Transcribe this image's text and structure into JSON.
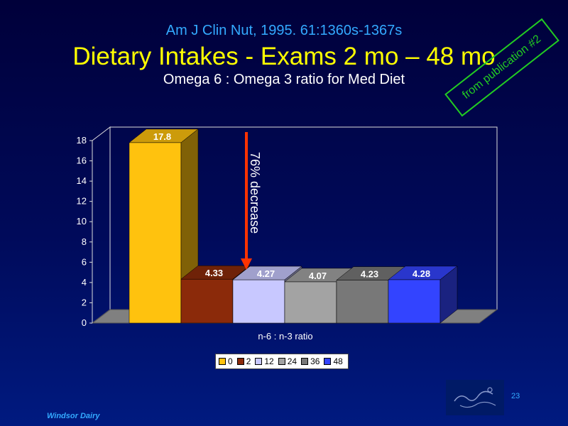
{
  "slide": {
    "citation": "Am J Clin Nut, 1995. 61:1360s-1367s",
    "title": "Dietary Intakes  - Exams 2 mo – 48 mo",
    "subtitle": "Omega 6 : Omega 3 ratio for Med Diet",
    "stamp": "from publication #2",
    "footer": "Windsor Dairy",
    "slide_number": "23",
    "annotation": "76% decrease"
  },
  "colors": {
    "title": "#ffff00",
    "citation": "#33aaff",
    "stamp": "#22cc22",
    "arrow": "#ff3300"
  },
  "chart_data": {
    "type": "bar",
    "xlabel": "n-6 : n-3 ratio",
    "ylim": [
      0,
      18
    ],
    "yticks": [
      0,
      2,
      4,
      6,
      8,
      10,
      12,
      14,
      16,
      18
    ],
    "legend_position": "bottom",
    "series": [
      {
        "name": "0",
        "value": 17.8,
        "label": "17.8",
        "color": "#ffc20e"
      },
      {
        "name": "2",
        "value": 4.33,
        "label": "4.33",
        "color": "#8b2a0a"
      },
      {
        "name": "12",
        "value": 4.27,
        "label": "4.27",
        "color": "#c8c8ff"
      },
      {
        "name": "24",
        "value": 4.07,
        "label": "4.07",
        "color": "#a3a3a3"
      },
      {
        "name": "36",
        "value": 4.23,
        "label": "4.23",
        "color": "#787878"
      },
      {
        "name": "48",
        "value": 4.28,
        "label": "4.28",
        "color": "#3344ff"
      }
    ]
  }
}
